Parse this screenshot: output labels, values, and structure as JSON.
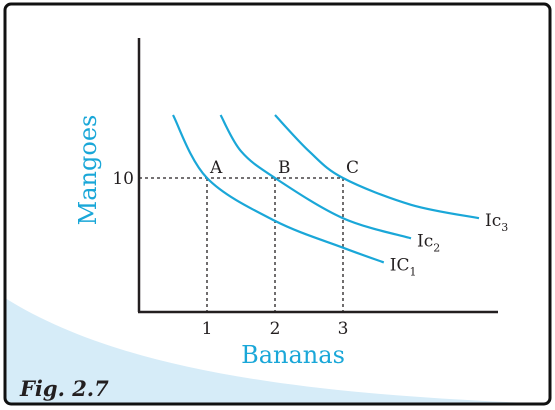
{
  "chart_data": {
    "type": "line",
    "caption": "Fig. 2.7",
    "xlabel": "Bananas",
    "ylabel": "Mangoes",
    "x_ticks": [
      "1",
      "2",
      "3"
    ],
    "y_ticks": [
      "10"
    ],
    "points": [
      {
        "label": "A",
        "x": 1,
        "y": 10
      },
      {
        "label": "B",
        "x": 2,
        "y": 10
      },
      {
        "label": "C",
        "x": 3,
        "y": 10
      }
    ],
    "series": [
      {
        "name": "IC",
        "sub": "1",
        "passes_through": "A",
        "x": [
          0.5,
          1.0,
          2.0,
          3.0,
          3.6
        ],
        "y": [
          14.7,
          10.0,
          6.8,
          4.8,
          3.7
        ]
      },
      {
        "name": "Ic",
        "sub": "2",
        "passes_through": "B",
        "x": [
          1.2,
          1.5,
          2.0,
          3.0,
          4.0
        ],
        "y": [
          14.7,
          12.0,
          10.0,
          7.0,
          5.5
        ]
      },
      {
        "name": "Ic",
        "sub": "3",
        "passes_through": "C",
        "x": [
          2.0,
          2.5,
          3.0,
          4.0,
          5.0
        ],
        "y": [
          14.7,
          12.0,
          10.0,
          8.0,
          7.0
        ]
      }
    ],
    "xlim": [
      0,
      5.7
    ],
    "ylim": [
      0,
      18.1
    ],
    "grid": false,
    "colors": {
      "curve": "#1aa7d8",
      "axis_title": "#1aa7d8",
      "text": "#231f20",
      "frame": "#111111",
      "band": "#d6ecf8"
    }
  }
}
